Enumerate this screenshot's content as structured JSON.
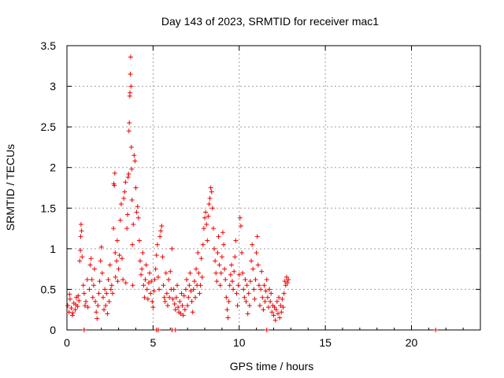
{
  "chart_data": {
    "type": "scatter",
    "title": "Day 143 of 2023, SRMTID for receiver mac1",
    "xlabel": "GPS time / hours",
    "ylabel": "SRMTID / TECUs",
    "xlim": [
      0,
      24
    ],
    "ylim": [
      0,
      3.5
    ],
    "x_ticks": [
      0,
      5,
      10,
      15,
      20
    ],
    "x_tick_labels": [
      "0",
      "5",
      "10",
      "15",
      "20"
    ],
    "y_ticks": [
      0,
      0.5,
      1,
      1.5,
      2,
      2.5,
      3,
      3.5
    ],
    "y_tick_labels": [
      "0",
      "0.5",
      "1",
      "1.5",
      "2",
      "2.5",
      "3",
      "3.5"
    ],
    "grid": true,
    "marker": "+",
    "marker_color": "#ee0000",
    "series": [
      {
        "name": "SRMTID",
        "points": [
          [
            0.05,
            0.3
          ],
          [
            0.12,
            0.22
          ],
          [
            0.18,
            0.38
          ],
          [
            0.25,
            0.27
          ],
          [
            0.32,
            0.18
          ],
          [
            0.4,
            0.33
          ],
          [
            0.48,
            0.25
          ],
          [
            0.55,
            0.4
          ],
          [
            0.62,
            0.29
          ],
          [
            0.7,
            0.36
          ],
          [
            0.15,
            0.44
          ],
          [
            0.35,
            0.21
          ],
          [
            0.52,
            0.31
          ],
          [
            0.65,
            0.42
          ],
          [
            0.74,
            0.85
          ],
          [
            0.78,
            0.98
          ],
          [
            0.8,
            1.15
          ],
          [
            0.82,
            1.3
          ],
          [
            0.85,
            1.22
          ],
          [
            0.88,
            0.9
          ],
          [
            0.95,
            0.55
          ],
          [
            1.0,
            0.45
          ],
          [
            1.05,
            0.3
          ],
          [
            1.1,
            0.35
          ],
          [
            1.18,
            0.62
          ],
          [
            1.22,
            0.28
          ],
          [
            1.3,
            0.5
          ],
          [
            1.35,
            0.8
          ],
          [
            1.4,
            0.88
          ],
          [
            1.45,
            0.62
          ],
          [
            1.5,
            0.4
          ],
          [
            1.55,
            0.55
          ],
          [
            1.6,
            0.75
          ],
          [
            1.65,
            0.35
          ],
          [
            1.7,
            0.22
          ],
          [
            1.75,
            0.14
          ],
          [
            1.8,
            0.3
          ],
          [
            1.85,
            0.45
          ],
          [
            1.9,
            0.6
          ],
          [
            1.95,
            0.85
          ],
          [
            2.0,
            1.02
          ],
          [
            2.05,
            0.7
          ],
          [
            2.1,
            0.4
          ],
          [
            2.15,
            0.25
          ],
          [
            2.2,
            0.5
          ],
          [
            2.25,
            0.3
          ],
          [
            2.3,
            0.45
          ],
          [
            2.35,
            0.2
          ],
          [
            2.4,
            0.62
          ],
          [
            2.45,
            0.35
          ],
          [
            2.5,
            0.8
          ],
          [
            2.55,
            0.5
          ],
          [
            2.6,
            0.55
          ],
          [
            2.65,
            0.45
          ],
          [
            2.7,
            1.25
          ],
          [
            2.72,
            1.8
          ],
          [
            2.75,
            1.78
          ],
          [
            2.78,
            1.93
          ],
          [
            2.8,
            0.95
          ],
          [
            2.82,
            0.65
          ],
          [
            2.88,
            0.85
          ],
          [
            2.92,
            1.1
          ],
          [
            2.95,
            0.6
          ],
          [
            3.0,
            0.75
          ],
          [
            3.05,
            0.92
          ],
          [
            3.1,
            1.35
          ],
          [
            3.15,
            1.55
          ],
          [
            3.2,
            0.88
          ],
          [
            3.25,
            0.62
          ],
          [
            3.3,
            1.62
          ],
          [
            3.35,
            1.7
          ],
          [
            3.4,
            1.82
          ],
          [
            3.42,
            0.58
          ],
          [
            3.48,
            1.25
          ],
          [
            3.52,
            1.42
          ],
          [
            3.55,
            1.88
          ],
          [
            3.58,
            1.92
          ],
          [
            3.6,
            2.45
          ],
          [
            3.62,
            2.55
          ],
          [
            3.65,
            2.88
          ],
          [
            3.66,
            2.92
          ],
          [
            3.68,
            3.15
          ],
          [
            3.7,
            3.36
          ],
          [
            3.72,
            3.0
          ],
          [
            3.74,
            2.25
          ],
          [
            3.76,
            1.98
          ],
          [
            3.78,
            1.6
          ],
          [
            3.8,
            1.05
          ],
          [
            3.82,
            0.55
          ],
          [
            3.85,
            1.3
          ],
          [
            3.9,
            2.15
          ],
          [
            3.95,
            2.08
          ],
          [
            4.0,
            1.75
          ],
          [
            4.05,
            1.45
          ],
          [
            4.1,
            1.52
          ],
          [
            4.15,
            1.38
          ],
          [
            4.2,
            1.1
          ],
          [
            4.25,
            0.85
          ],
          [
            4.3,
            0.68
          ],
          [
            4.35,
            0.75
          ],
          [
            4.4,
            0.95
          ],
          [
            4.45,
            0.55
          ],
          [
            4.5,
            0.4
          ],
          [
            4.55,
            0.62
          ],
          [
            4.6,
            0.8
          ],
          [
            4.65,
            0.5
          ],
          [
            4.7,
            0.38
          ],
          [
            4.75,
            0.58
          ],
          [
            4.8,
            0.7
          ],
          [
            4.85,
            0.45
          ],
          [
            4.9,
            0.6
          ],
          [
            4.95,
            0.35
          ],
          [
            5.0,
            0.28
          ],
          [
            5.05,
            0.48
          ],
          [
            5.1,
            0.62
          ],
          [
            5.15,
            0.75
          ],
          [
            5.2,
            0.92
          ],
          [
            5.25,
            1.05
          ],
          [
            5.3,
            0.65
          ],
          [
            5.35,
            0.5
          ],
          [
            5.4,
            1.15
          ],
          [
            5.45,
            1.22
          ],
          [
            5.5,
            1.28
          ],
          [
            5.55,
            0.9
          ],
          [
            5.6,
            0.55
          ],
          [
            5.65,
            0.4
          ],
          [
            5.7,
            0.35
          ],
          [
            5.75,
            0.7
          ],
          [
            5.8,
            0.45
          ],
          [
            5.85,
            0.3
          ],
          [
            5.9,
            0.62
          ],
          [
            5.95,
            0.4
          ],
          [
            6.0,
            0.72
          ],
          [
            6.05,
            0.5
          ],
          [
            6.1,
            1.0
          ],
          [
            6.15,
            0.38
          ],
          [
            6.2,
            0.5
          ],
          [
            6.25,
            0.32
          ],
          [
            6.3,
            0.25
          ],
          [
            6.35,
            0.4
          ],
          [
            6.4,
            0.55
          ],
          [
            6.45,
            0.28
          ],
          [
            6.5,
            0.22
          ],
          [
            6.55,
            0.35
          ],
          [
            6.6,
            0.2
          ],
          [
            6.65,
            0.45
          ],
          [
            6.7,
            0.3
          ],
          [
            6.75,
            0.18
          ],
          [
            6.8,
            0.42
          ],
          [
            6.85,
            0.25
          ],
          [
            6.9,
            0.5
          ],
          [
            6.95,
            0.62
          ],
          [
            7.0,
            0.3
          ],
          [
            7.05,
            0.4
          ],
          [
            7.1,
            0.55
          ],
          [
            7.15,
            0.7
          ],
          [
            7.2,
            0.48
          ],
          [
            7.25,
            0.35
          ],
          [
            7.3,
            0.22
          ],
          [
            7.35,
            0.5
          ],
          [
            7.4,
            0.6
          ],
          [
            7.45,
            0.4
          ],
          [
            7.5,
            0.75
          ],
          [
            7.55,
            0.55
          ],
          [
            7.6,
            0.95
          ],
          [
            7.65,
            0.7
          ],
          [
            7.7,
            0.45
          ],
          [
            7.75,
            0.55
          ],
          [
            7.8,
            0.88
          ],
          [
            7.85,
            0.65
          ],
          [
            7.9,
            1.05
          ],
          [
            7.95,
            1.25
          ],
          [
            8.0,
            1.38
          ],
          [
            8.05,
            1.45
          ],
          [
            8.1,
            1.3
          ],
          [
            8.15,
            1.1
          ],
          [
            8.2,
            1.4
          ],
          [
            8.25,
            1.55
          ],
          [
            8.3,
            1.62
          ],
          [
            8.35,
            1.75
          ],
          [
            8.4,
            1.7
          ],
          [
            8.45,
            1.5
          ],
          [
            8.5,
            1.25
          ],
          [
            8.55,
            1.0
          ],
          [
            8.6,
            0.85
          ],
          [
            8.65,
            0.7
          ],
          [
            8.7,
            0.6
          ],
          [
            8.75,
            0.95
          ],
          [
            8.8,
            1.15
          ],
          [
            8.85,
            0.8
          ],
          [
            8.9,
            0.55
          ],
          [
            8.95,
            0.7
          ],
          [
            9.0,
            0.9
          ],
          [
            9.05,
            1.2
          ],
          [
            9.1,
            1.05
          ],
          [
            9.15,
            0.75
          ],
          [
            9.2,
            0.62
          ],
          [
            9.25,
            0.4
          ],
          [
            9.3,
            0.25
          ],
          [
            9.35,
            0.15
          ],
          [
            9.4,
            0.35
          ],
          [
            9.45,
            0.55
          ],
          [
            9.5,
            0.68
          ],
          [
            9.55,
            0.8
          ],
          [
            9.6,
            0.6
          ],
          [
            9.65,
            0.5
          ],
          [
            9.7,
            0.72
          ],
          [
            9.75,
            0.9
          ],
          [
            9.8,
            1.1
          ],
          [
            9.85,
            0.45
          ],
          [
            9.9,
            0.3
          ],
          [
            9.95,
            0.55
          ],
          [
            10.0,
            0.68
          ],
          [
            10.05,
            1.38
          ],
          [
            10.1,
            1.28
          ],
          [
            10.15,
            0.95
          ],
          [
            10.2,
            0.7
          ],
          [
            10.25,
            0.5
          ],
          [
            10.3,
            0.4
          ],
          [
            10.35,
            0.62
          ],
          [
            10.4,
            0.35
          ],
          [
            10.45,
            0.55
          ],
          [
            10.5,
            0.2
          ],
          [
            10.55,
            0.45
          ],
          [
            10.6,
            0.3
          ],
          [
            10.65,
            0.6
          ],
          [
            10.7,
            0.85
          ],
          [
            10.75,
            1.05
          ],
          [
            10.8,
            0.75
          ],
          [
            10.85,
            0.5
          ],
          [
            10.9,
            0.38
          ],
          [
            10.95,
            0.62
          ],
          [
            11.0,
            0.95
          ],
          [
            11.05,
            1.15
          ],
          [
            11.1,
            0.8
          ],
          [
            11.15,
            0.55
          ],
          [
            11.2,
            0.3
          ],
          [
            11.25,
            0.5
          ],
          [
            11.3,
            0.72
          ],
          [
            11.35,
            0.4
          ],
          [
            11.4,
            0.25
          ],
          [
            11.45,
            0.55
          ],
          [
            11.5,
            0.35
          ],
          [
            11.55,
            0.48
          ],
          [
            11.6,
            0.62
          ],
          [
            11.65,
            0.4
          ],
          [
            11.7,
            0.28
          ],
          [
            11.75,
            0.5
          ],
          [
            11.8,
            0.35
          ],
          [
            11.85,
            0.45
          ],
          [
            11.9,
            0.22
          ],
          [
            11.95,
            0.3
          ],
          [
            12.0,
            0.18
          ],
          [
            12.05,
            0.28
          ],
          [
            12.1,
            0.12
          ],
          [
            12.15,
            0.25
          ],
          [
            12.2,
            0.35
          ],
          [
            12.25,
            0.2
          ],
          [
            12.3,
            0.4
          ],
          [
            12.35,
            0.15
          ],
          [
            12.4,
            0.3
          ],
          [
            12.45,
            0.22
          ],
          [
            12.5,
            0.38
          ],
          [
            12.55,
            0.28
          ],
          [
            12.6,
            0.45
          ],
          [
            12.65,
            0.6
          ],
          [
            12.7,
            0.55
          ],
          [
            12.75,
            0.65
          ],
          [
            12.8,
            0.58
          ],
          [
            12.85,
            0.62
          ],
          [
            1.0,
            0.0
          ],
          [
            5.2,
            0.0
          ],
          [
            5.3,
            0.0
          ],
          [
            6.1,
            0.0
          ],
          [
            6.3,
            0.0
          ],
          [
            11.6,
            0.0
          ],
          [
            21.4,
            0.0
          ]
        ]
      }
    ]
  }
}
